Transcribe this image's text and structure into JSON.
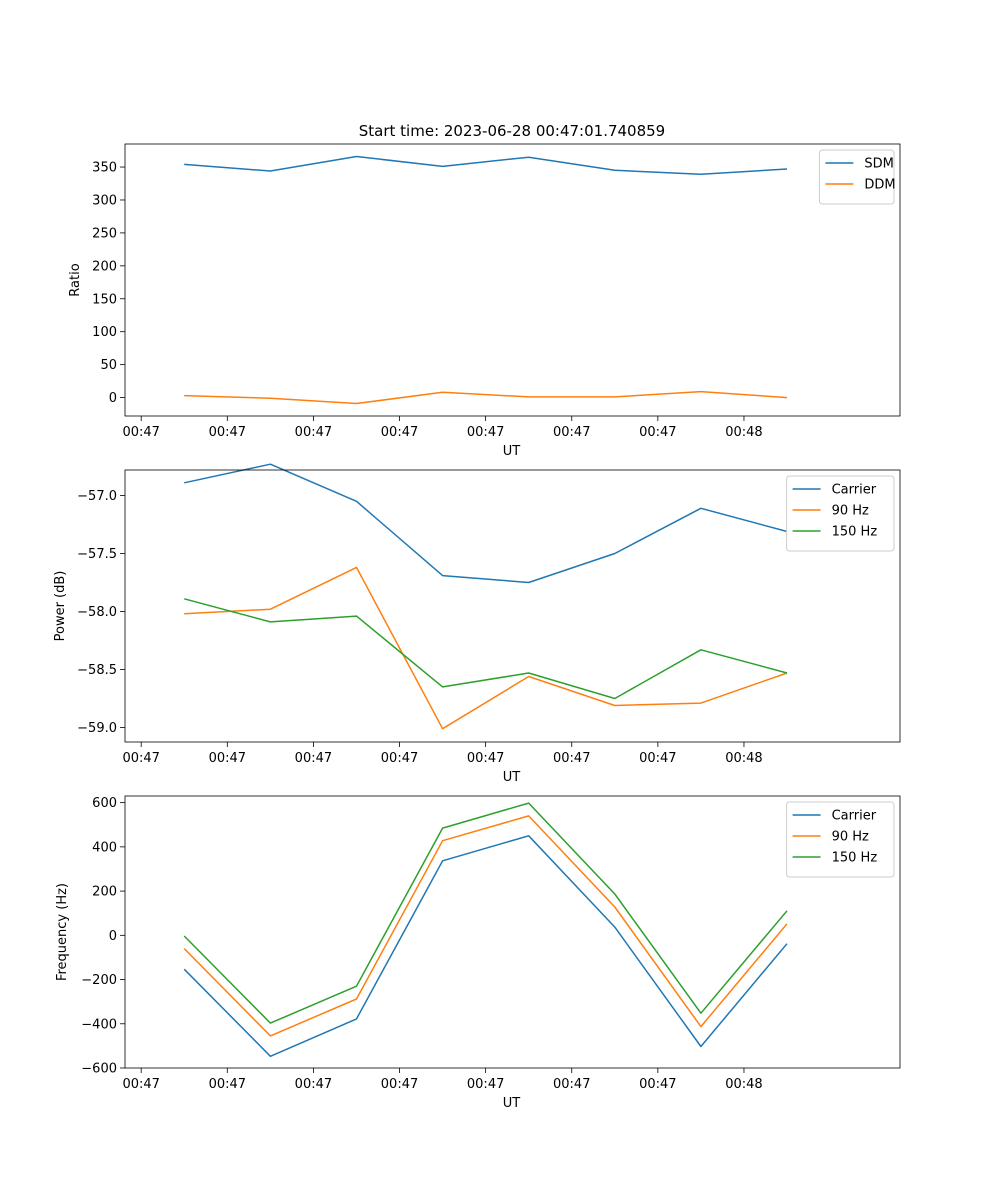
{
  "figure": {
    "title": "Start time: 2023-06-28 00:47:01.740859"
  },
  "chart_data": [
    {
      "type": "line",
      "xlabel": "UT",
      "ylabel": "Ratio",
      "x_tick_labels": [
        "00:47",
        "00:47",
        "00:47",
        "00:47",
        "00:47",
        "00:47",
        "00:47",
        "00:48"
      ],
      "xlim": [
        -0.188,
        8.812
      ],
      "ylim": [
        -28,
        385
      ],
      "y_ticks": [
        0,
        50,
        100,
        150,
        200,
        250,
        300,
        350
      ],
      "y_tick_labels": [
        "0",
        "50",
        "100",
        "150",
        "200",
        "250",
        "300",
        "350"
      ],
      "legend_position": "top-right",
      "x": [
        0.5,
        1.5,
        2.5,
        3.5,
        4.5,
        5.5,
        6.5,
        7.5
      ],
      "series": [
        {
          "name": "SDM",
          "color": "#1f77b4",
          "values": [
            354,
            344,
            366,
            351,
            365,
            345,
            339,
            347
          ]
        },
        {
          "name": "DDM",
          "color": "#ff7f0e",
          "values": [
            3,
            -1,
            -9,
            8,
            1,
            1,
            9,
            0
          ]
        }
      ]
    },
    {
      "type": "line",
      "xlabel": "UT",
      "ylabel": "Power (dB)",
      "x_tick_labels": [
        "00:47",
        "00:47",
        "00:47",
        "00:47",
        "00:47",
        "00:47",
        "00:47",
        "00:48"
      ],
      "xlim": [
        -0.188,
        8.812
      ],
      "ylim": [
        -59.125,
        -56.78
      ],
      "y_ticks": [
        -59.0,
        -58.5,
        -58.0,
        -57.5,
        -57.0
      ],
      "y_tick_labels": [
        "−59.0",
        "−58.5",
        "−58.0",
        "−57.5",
        "−57.0"
      ],
      "legend_position": "top-right",
      "x": [
        0.5,
        1.5,
        2.5,
        3.5,
        4.5,
        5.5,
        6.5,
        7.5
      ],
      "series": [
        {
          "name": "Carrier",
          "color": "#1f77b4",
          "values": [
            -56.89,
            -56.73,
            -57.05,
            -57.69,
            -57.75,
            -57.5,
            -57.11,
            -57.31
          ]
        },
        {
          "name": "90 Hz",
          "color": "#ff7f0e",
          "values": [
            -58.02,
            -57.98,
            -57.62,
            -59.01,
            -58.56,
            -58.81,
            -58.79,
            -58.53
          ]
        },
        {
          "name": "150 Hz",
          "color": "#2ca02c",
          "values": [
            -57.89,
            -58.09,
            -58.04,
            -58.65,
            -58.53,
            -58.75,
            -58.33,
            -58.53
          ]
        }
      ]
    },
    {
      "type": "line",
      "xlabel": "UT",
      "ylabel": "Frequency (Hz)",
      "x_tick_labels": [
        "00:47",
        "00:47",
        "00:47",
        "00:47",
        "00:47",
        "00:47",
        "00:47",
        "00:48"
      ],
      "xlim": [
        -0.188,
        8.812
      ],
      "ylim": [
        -600,
        630
      ],
      "y_ticks": [
        -600,
        -400,
        -200,
        0,
        200,
        400,
        600
      ],
      "y_tick_labels": [
        "−600",
        "−400",
        "−200",
        "0",
        "200",
        "400",
        "600"
      ],
      "legend_position": "top-right",
      "x": [
        0.5,
        1.5,
        2.5,
        3.5,
        4.5,
        5.5,
        6.5,
        7.5
      ],
      "series": [
        {
          "name": "Carrier",
          "color": "#1f77b4",
          "values": [
            -153,
            -547,
            -378,
            337,
            450,
            37,
            -503,
            -38
          ]
        },
        {
          "name": "90 Hz",
          "color": "#ff7f0e",
          "values": [
            -60,
            -455,
            -288,
            428,
            540,
            128,
            -413,
            52
          ]
        },
        {
          "name": "150 Hz",
          "color": "#2ca02c",
          "values": [
            -3,
            -397,
            -230,
            485,
            598,
            187,
            -352,
            111
          ]
        }
      ]
    }
  ]
}
